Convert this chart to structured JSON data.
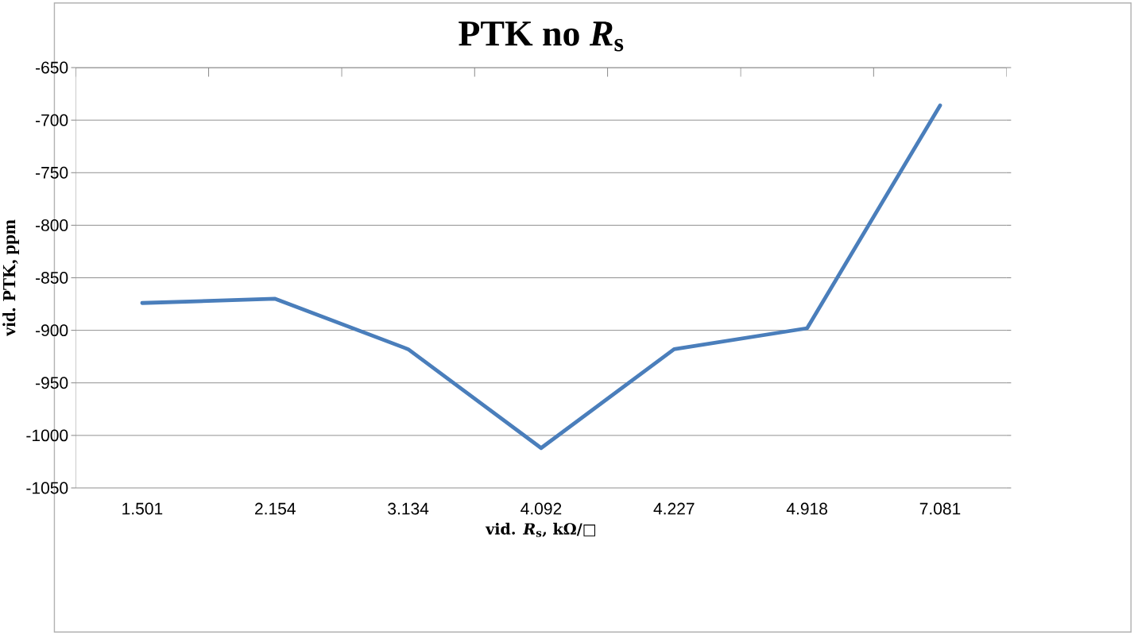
{
  "chart_data": {
    "type": "line",
    "title": "PTK no *R*$_{s}$",
    "xlabel": "vid. *R*$_{s}$, kΩ/□",
    "ylabel": "vid. PTK, ppm",
    "categories": [
      "1.501",
      "2.154",
      "3.134",
      "4.092",
      "4.227",
      "4.918",
      "7.081"
    ],
    "series": [
      {
        "color": "#4a7ebb",
        "values": [
          -874,
          -870,
          -918,
          -1012,
          -918,
          -898,
          -686
        ]
      }
    ],
    "ylim": [
      -1050,
      -650
    ],
    "yticks": [
      -1050,
      -1000,
      -950,
      -900,
      -850,
      -800,
      -750,
      -700,
      -650
    ],
    "grid": "y",
    "marker": "none",
    "line_style": "solid"
  }
}
